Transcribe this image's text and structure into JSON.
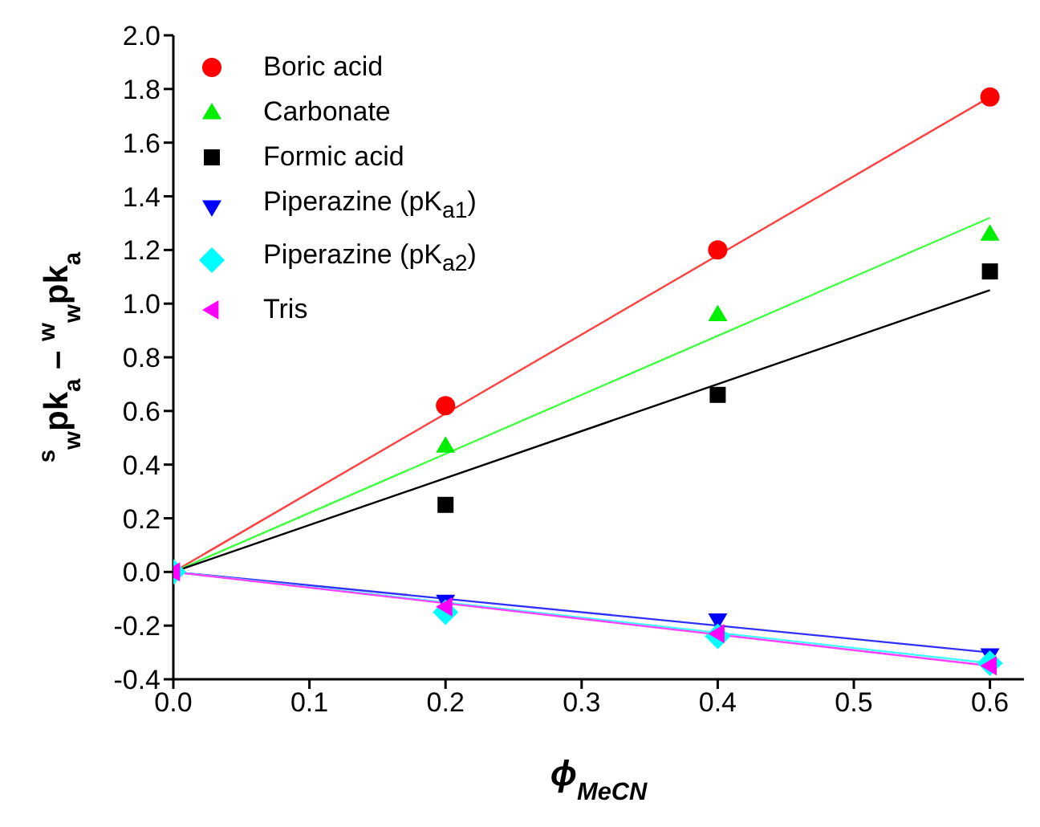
{
  "chart_data": {
    "type": "scatter",
    "xlabel": "ϕ$_{MeCN}$",
    "ylabel": "$^{s}$$_{w}$pk$_{a}$ – $^{w}$$_{w}$pk$_{a}$",
    "xlim": [
      0,
      0.625
    ],
    "xticks": [
      {
        "value": 0,
        "label": "0.0"
      },
      0.1,
      0.2,
      0.3,
      0.4,
      0.5,
      0.6
    ],
    "ylim": [
      -0.4,
      2.0
    ],
    "yticks": [
      -0.4,
      -0.2,
      {
        "value": 0,
        "label": "0.0"
      },
      0.2,
      0.4,
      0.6,
      0.8,
      {
        "value": 1,
        "label": "1.0"
      },
      1.2,
      1.4,
      1.6,
      1.8,
      {
        "value": 2,
        "label": "2.0"
      }
    ],
    "grid": false,
    "legend": "top left",
    "series": [
      {
        "name": "Boric acid",
        "color": "#ff0000",
        "marker": "circle",
        "x": [
          0.2,
          0.4,
          0.6
        ],
        "values": [
          0.62,
          1.2,
          1.77
        ]
      },
      {
        "name": "Carbonate",
        "color": "#00ee00",
        "marker": "triangle",
        "x": [
          0.2,
          0.4,
          0.6
        ],
        "values": [
          0.47,
          0.96,
          1.26
        ]
      },
      {
        "name": "Formic acid",
        "color": "#000000",
        "marker": "square",
        "x": [
          0.2,
          0.4,
          0.6
        ],
        "values": [
          0.25,
          0.66,
          1.12
        ]
      },
      {
        "name": "Piperazine (pK$_{a1}$)",
        "color": "#0000ff",
        "marker": "triangle-down",
        "x": [
          0.2,
          0.4,
          0.6
        ],
        "values": [
          -0.11,
          -0.18,
          -0.31
        ]
      },
      {
        "name": "Piperazine (pK$_{a2}$)",
        "color": "#00ffff",
        "marker": "diamond",
        "x": [
          0,
          0.2,
          0.4,
          0.6
        ],
        "values": [
          0,
          -0.15,
          -0.24,
          -0.34
        ]
      },
      {
        "name": "Tris",
        "color": "#ff00ff",
        "marker": "triangle-left",
        "x": [
          0,
          0.2,
          0.4,
          0.6
        ],
        "values": [
          0,
          -0.13,
          -0.23,
          -0.35
        ]
      },
      {
        "type": "line",
        "color": "#ff4040",
        "x": [
          0,
          0.6
        ],
        "values": [
          0,
          1.77
        ]
      },
      {
        "type": "line",
        "color": "#40ff40",
        "x": [
          0,
          0.6
        ],
        "values": [
          0,
          1.32
        ]
      },
      {
        "type": "line",
        "color": "#000000",
        "x": [
          0,
          0.6
        ],
        "values": [
          0,
          1.05
        ]
      },
      {
        "type": "line",
        "color": "#3030ff",
        "x": [
          0,
          0.6
        ],
        "values": [
          0,
          -0.3
        ]
      },
      {
        "type": "line",
        "color": "#40ffff",
        "x": [
          0,
          0.6
        ],
        "values": [
          0,
          -0.34
        ]
      },
      {
        "type": "line",
        "color": "#ff40ff",
        "x": [
          0,
          0.6
        ],
        "values": [
          0,
          -0.35
        ]
      }
    ]
  }
}
